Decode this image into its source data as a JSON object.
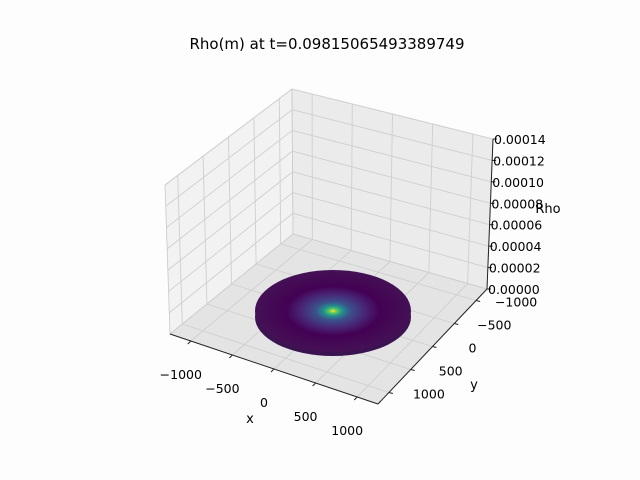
{
  "chart_data": {
    "type": "surface3d",
    "title": "Rho(m) at t=0.09815065493389749",
    "xlabel": "x",
    "ylabel": "y",
    "zlabel": "Rho",
    "x_ticks": [
      "−1000",
      "−500",
      "0",
      "500",
      "1000"
    ],
    "y_ticks": [
      "−1000",
      "−500",
      "0",
      "500",
      "1000"
    ],
    "z_ticks": [
      "0.00000",
      "0.00002",
      "0.00004",
      "0.00006",
      "0.00008",
      "0.00010",
      "0.00012",
      "0.00014"
    ],
    "xlim": [
      -1250,
      1250
    ],
    "ylim": [
      -1250,
      1250
    ],
    "zlim": [
      0,
      0.00014
    ],
    "domain_radius": 1000,
    "colormap": "viridis",
    "colormap_colors": [
      "#440154",
      "#3b528b",
      "#21918c",
      "#5ec962",
      "#fde725"
    ],
    "grid": true
  }
}
